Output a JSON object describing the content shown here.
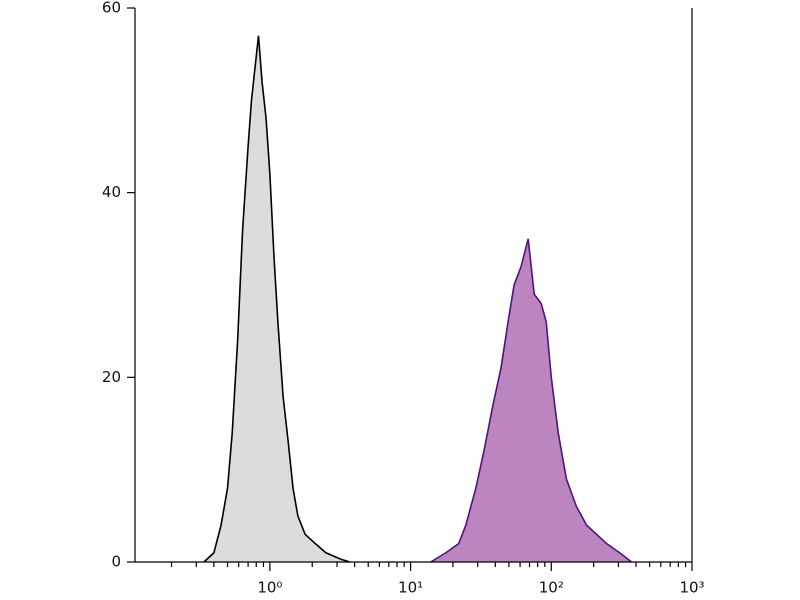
{
  "chart_data": {
    "type": "area",
    "xscale": "log",
    "xlim": [
      0.11,
      1000
    ],
    "ylim": [
      0,
      60
    ],
    "yticks": [
      0,
      20,
      40,
      60
    ],
    "xticks": [
      {
        "value": 1,
        "label": "10⁰"
      },
      {
        "value": 10,
        "label": "10¹"
      },
      {
        "value": 100,
        "label": "10²"
      },
      {
        "value": 1000,
        "label": "10³"
      }
    ],
    "xminorticks": [
      0.2,
      0.3,
      0.4,
      0.5,
      0.6,
      0.7,
      0.8,
      0.9,
      2,
      3,
      4,
      5,
      6,
      7,
      8,
      9,
      20,
      30,
      40,
      50,
      60,
      70,
      80,
      90,
      200,
      300,
      400,
      500,
      600,
      700,
      800,
      900
    ],
    "series": [
      {
        "color": "#dcdcdc",
        "stroke": "#000000",
        "x": [
          0.34,
          0.4,
          0.45,
          0.5,
          0.54,
          0.59,
          0.64,
          0.7,
          0.74,
          0.79,
          0.83,
          0.88,
          0.94,
          1.0,
          1.07,
          1.14,
          1.24,
          1.35,
          1.46,
          1.58,
          1.78,
          2.1,
          2.5,
          3.2,
          3.7
        ],
        "values": [
          0,
          1,
          4,
          8,
          14,
          24,
          36,
          45,
          50,
          54,
          57,
          52,
          48,
          42,
          33,
          26,
          18,
          13,
          8,
          5,
          3,
          2,
          1,
          0.3,
          0
        ]
      },
      {
        "color": "#bd85c0",
        "stroke": "#4e1477",
        "x": [
          13.9,
          17.8,
          22,
          24.7,
          29.1,
          33.2,
          38.5,
          43.9,
          49.3,
          54.4,
          61,
          68.5,
          75.6,
          84.8,
          92,
          100,
          112,
          128,
          151,
          178,
          210,
          247,
          306,
          372
        ],
        "values": [
          0,
          1,
          2,
          4,
          8,
          12,
          17,
          21,
          26,
          30,
          32,
          35,
          29,
          28,
          26,
          20,
          14,
          9,
          6,
          4,
          3,
          2,
          1,
          0
        ]
      }
    ]
  }
}
